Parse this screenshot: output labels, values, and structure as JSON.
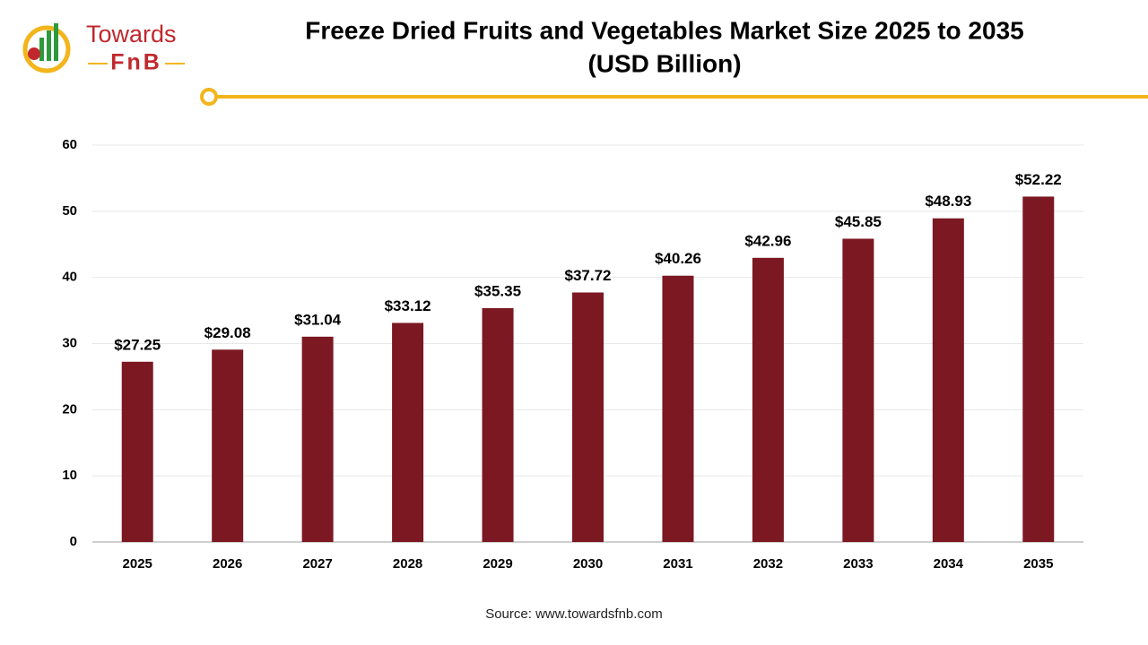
{
  "logo": {
    "line1": "Towards",
    "line2": "FnB"
  },
  "chart_data": {
    "type": "bar",
    "title": "Freeze Dried Fruits and Vegetables Market Size 2025 to 2035",
    "subtitle": "(USD Billion)",
    "categories": [
      "2025",
      "2026",
      "2027",
      "2028",
      "2029",
      "2030",
      "2031",
      "2032",
      "2033",
      "2034",
      "2035"
    ],
    "values": [
      27.25,
      29.08,
      31.04,
      33.12,
      35.35,
      37.72,
      40.26,
      42.96,
      45.85,
      48.93,
      52.22
    ],
    "value_labels": [
      "$27.25",
      "$29.08",
      "$31.04",
      "$33.12",
      "$35.35",
      "$37.72",
      "$40.26",
      "$42.96",
      "$45.85",
      "$48.93",
      "$52.22"
    ],
    "color": "#7b1822",
    "ylim": [
      0,
      60
    ],
    "yticks": [
      0,
      10,
      20,
      30,
      40,
      50,
      60
    ],
    "grid": true,
    "source": "Source: www.towardsfnb.com"
  }
}
